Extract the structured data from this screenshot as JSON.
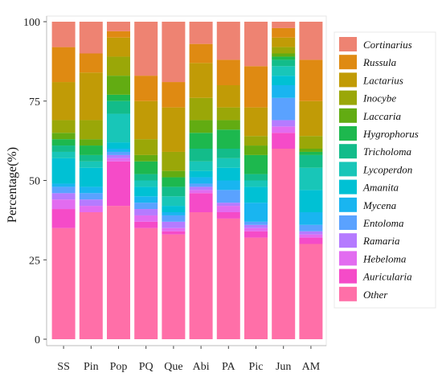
{
  "chart_data": {
    "type": "bar",
    "stacked": true,
    "ylabel": "Percentage(%)",
    "xlabel": "",
    "ylim": [
      0,
      100
    ],
    "yticks": [
      0,
      25,
      50,
      75,
      100
    ],
    "legend_position": "right",
    "categories": [
      "SS",
      "Pin",
      "Pop",
      "PQ",
      "Que",
      "Abi",
      "PA",
      "Pic",
      "Jun",
      "AM"
    ],
    "series": [
      {
        "name": "Other",
        "color": "#FF6FA8",
        "values": [
          35,
          40,
          42,
          35,
          33,
          40,
          38,
          32,
          60,
          30
        ]
      },
      {
        "name": "Auricularia",
        "color": "#F54BC8",
        "values": [
          6,
          0,
          14,
          2,
          1,
          6,
          2,
          2,
          5,
          2
        ]
      },
      {
        "name": "Hebeloma",
        "color": "#E26CF0",
        "values": [
          3,
          2,
          1,
          2,
          1,
          1,
          2,
          1,
          2,
          1
        ]
      },
      {
        "name": "Ramaria",
        "color": "#B57BFF",
        "values": [
          2,
          2,
          1,
          2,
          2,
          1,
          1,
          1,
          2,
          1
        ]
      },
      {
        "name": "Entoloma",
        "color": "#5AA2FF",
        "values": [
          2,
          2,
          1,
          2,
          2,
          1,
          4,
          1,
          7,
          2
        ]
      },
      {
        "name": "Mycena",
        "color": "#19B5F0",
        "values": [
          1,
          2,
          1,
          2,
          1,
          2,
          3,
          6,
          4,
          4
        ]
      },
      {
        "name": "Amanita",
        "color": "#00C1D4",
        "values": [
          8,
          6,
          2,
          3,
          2,
          2,
          4,
          5,
          3,
          7
        ]
      },
      {
        "name": "Lycoperdon",
        "color": "#18C6B8",
        "values": [
          2,
          2,
          9,
          2,
          3,
          3,
          3,
          2,
          3,
          7
        ]
      },
      {
        "name": "Tricholoma",
        "color": "#13BC8A",
        "values": [
          2,
          2,
          4,
          2,
          3,
          4,
          3,
          2,
          2,
          4
        ]
      },
      {
        "name": "Hygrophorus",
        "color": "#1DB84E",
        "values": [
          2,
          3,
          2,
          4,
          3,
          5,
          6,
          6,
          1,
          1
        ]
      },
      {
        "name": "Laccaria",
        "color": "#62AC12",
        "values": [
          2,
          2,
          6,
          2,
          2,
          4,
          3,
          3,
          1,
          1
        ]
      },
      {
        "name": "Inocybe",
        "color": "#9AA708",
        "values": [
          4,
          6,
          6,
          5,
          6,
          7,
          4,
          3,
          2,
          4
        ]
      },
      {
        "name": "Lactarius",
        "color": "#C19B06",
        "values": [
          12,
          15,
          6,
          12,
          14,
          11,
          7,
          9,
          3,
          11
        ]
      },
      {
        "name": "Russula",
        "color": "#DF8A12",
        "values": [
          11,
          6,
          2,
          8,
          8,
          6,
          8,
          13,
          3,
          13
        ]
      },
      {
        "name": "Cortinarius",
        "color": "#EE8372",
        "values": [
          8,
          10,
          3,
          17,
          19,
          7,
          12,
          14,
          2,
          12
        ]
      }
    ]
  }
}
